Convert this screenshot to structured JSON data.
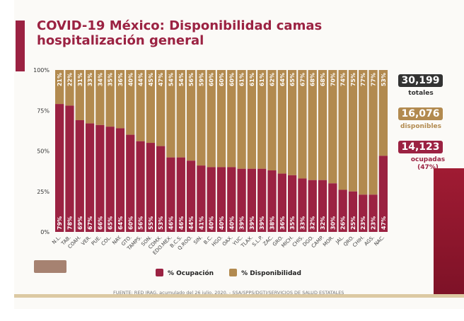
{
  "title": "COVID-19 México: Disponibilidad camas hospitalización general",
  "summary": {
    "total": "30,199",
    "total_label": "totales",
    "available": "16,076",
    "available_label": "disponibles",
    "occupied": "14,123",
    "occupied_label": "ocupadas (47%)"
  },
  "source": "FUENTE: RED IRAG, acumulado del 26 julio, 2020. -  SSA/SPPS/DGTI/SERVICIOS DE SALUD ESTATALES",
  "colors": {
    "occupancy": "#9b2242",
    "availability": "#b28a4f",
    "accent": "#9b2242",
    "total_box": "#333333"
  },
  "chart_data": {
    "type": "bar",
    "stacked": true,
    "title": "",
    "xlabel": "",
    "ylabel": "",
    "ylim": [
      0,
      100
    ],
    "yticks": [
      "0%",
      "25%",
      "50%",
      "75%",
      "100%"
    ],
    "legend_position": "bottom",
    "categories": [
      "N.L.",
      "TAB.",
      "COAH.",
      "VER.",
      "PUE.",
      "COL.",
      "NAY.",
      "GTO.",
      "TAMPS.",
      "SON.",
      "CDMX.",
      "EDO.MEX.",
      "B.C.S.",
      "Q.ROO.",
      "SIN.",
      "B.C.",
      "HGO.",
      "OAX.",
      "YUC.",
      "TLAX.",
      "S.L.P.",
      "ZAC.",
      "GRO.",
      "MICH.",
      "CHIS.",
      "DGO.",
      "CAMP.",
      "MOR.",
      "JAL.",
      "QRO.",
      "CHIH.",
      "AGS.",
      "NAC."
    ],
    "series": [
      {
        "name": "% Ocupación",
        "values": [
          79,
          78,
          69,
          67,
          66,
          65,
          64,
          60,
          56,
          55,
          53,
          46,
          46,
          44,
          41,
          40,
          40,
          40,
          39,
          39,
          39,
          38,
          36,
          35,
          33,
          32,
          32,
          30,
          26,
          25,
          23,
          23,
          47
        ]
      },
      {
        "name": "% Disponibilidad",
        "values": [
          21,
          22,
          31,
          33,
          34,
          35,
          36,
          40,
          44,
          45,
          47,
          54,
          54,
          56,
          59,
          60,
          60,
          60,
          61,
          61,
          61,
          62,
          64,
          65,
          67,
          68,
          68,
          70,
          74,
          75,
          77,
          77,
          53
        ]
      }
    ]
  }
}
